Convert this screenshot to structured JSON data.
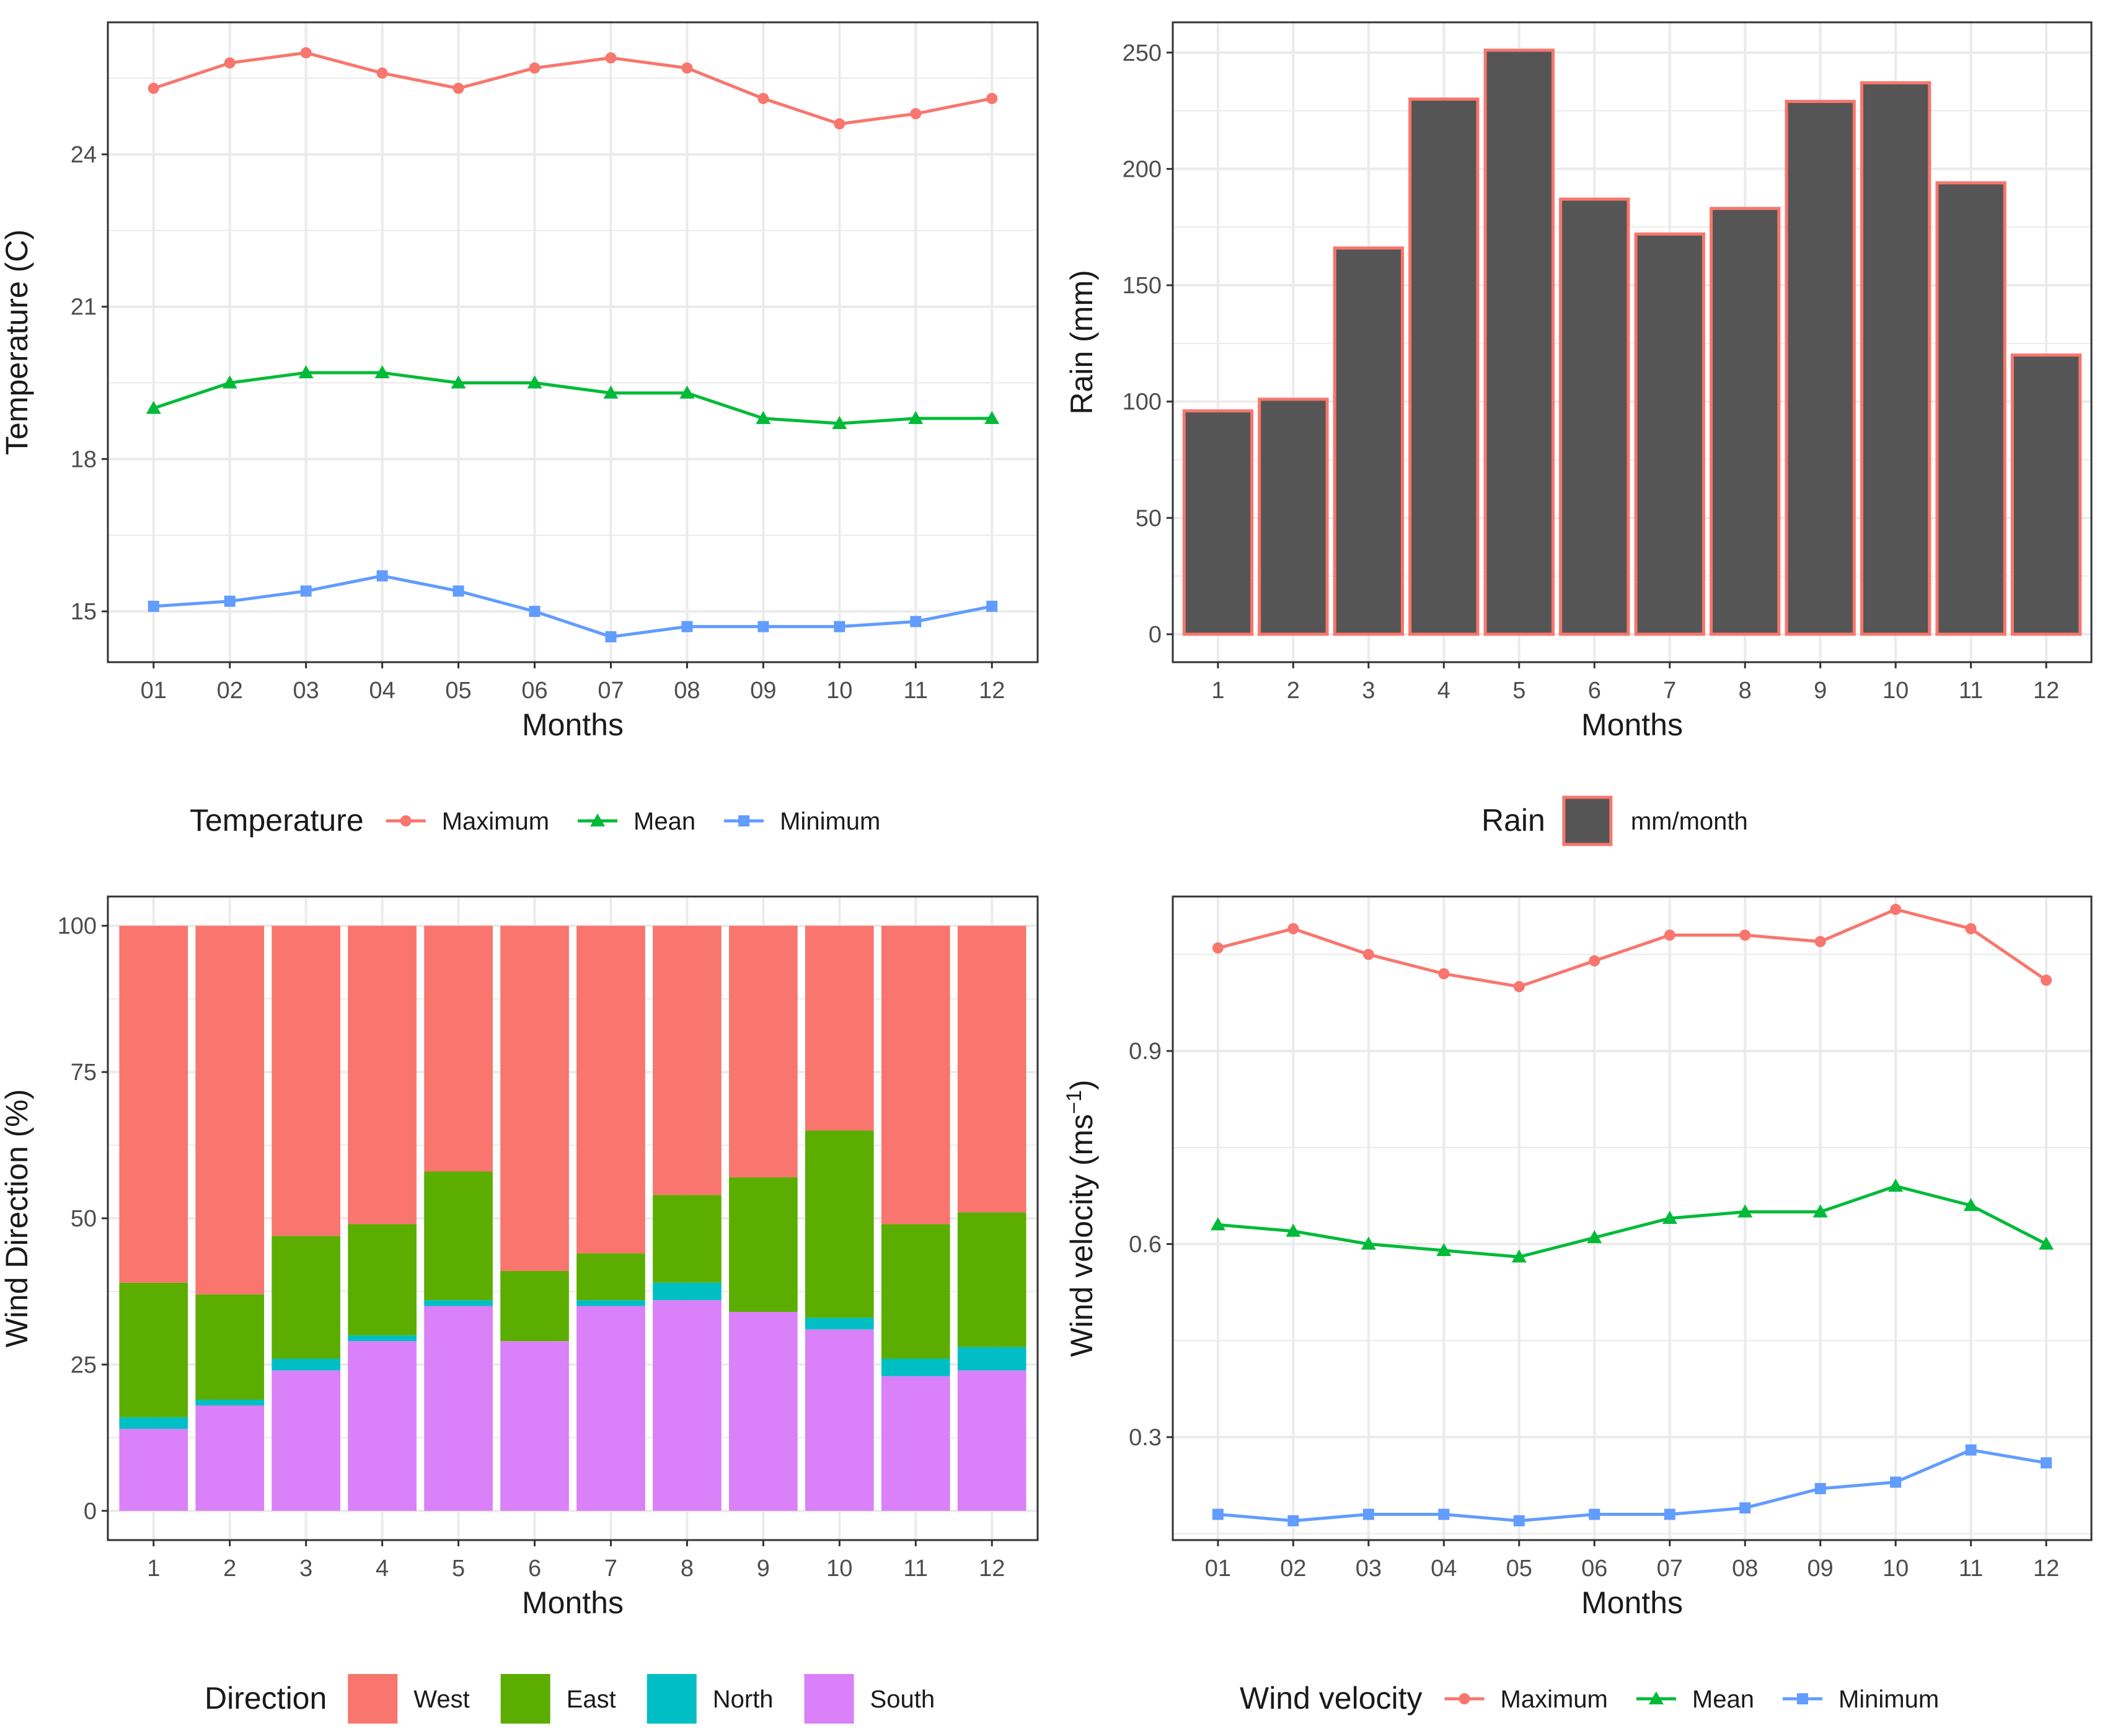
{
  "colors": {
    "maximum": "#F8766D",
    "mean": "#00BA38",
    "minimum": "#619CFF",
    "west": "#F8766D",
    "east": "#5BAE00",
    "north": "#00BFC4",
    "south": "#DA80F8",
    "rain_fill": "#555555",
    "rain_outline": "#F8766D",
    "grid": "#EBEBEB",
    "panel_border": "#333333"
  },
  "chart_data": [
    {
      "id": "temperature",
      "type": "line",
      "title": "",
      "xlabel": "Months",
      "ylabel": "Temperature (C)",
      "categories": [
        "01",
        "02",
        "03",
        "04",
        "05",
        "06",
        "07",
        "08",
        "09",
        "10",
        "11",
        "12"
      ],
      "ylim": [
        14.0,
        26.6
      ],
      "yticks": [
        15,
        18,
        21,
        24
      ],
      "ytick_labels": [
        "15",
        "18",
        "21",
        "24"
      ],
      "grid": true,
      "legend": {
        "title": "Temperature",
        "position": "bottom"
      },
      "series": [
        {
          "name": "Maximum",
          "color_key": "maximum",
          "marker": "circle",
          "values": [
            25.3,
            25.8,
            26.0,
            25.6,
            25.3,
            25.7,
            25.9,
            25.7,
            25.1,
            24.6,
            24.8,
            25.1
          ]
        },
        {
          "name": "Mean",
          "color_key": "mean",
          "marker": "triangle",
          "values": [
            19.0,
            19.5,
            19.7,
            19.7,
            19.5,
            19.5,
            19.3,
            19.3,
            18.8,
            18.7,
            18.8,
            18.8
          ]
        },
        {
          "name": "Minimum",
          "color_key": "minimum",
          "marker": "square",
          "values": [
            15.1,
            15.2,
            15.4,
            15.7,
            15.4,
            15.0,
            14.5,
            14.7,
            14.7,
            14.7,
            14.8,
            15.1
          ]
        }
      ]
    },
    {
      "id": "rain",
      "type": "bar",
      "title": "",
      "xlabel": "Months",
      "ylabel": "Rain (mm)",
      "categories": [
        "1",
        "2",
        "3",
        "4",
        "5",
        "6",
        "7",
        "8",
        "9",
        "10",
        "11",
        "12"
      ],
      "ylim": [
        -12,
        263
      ],
      "yticks": [
        0,
        50,
        100,
        150,
        200,
        250
      ],
      "ytick_labels": [
        "0",
        "50",
        "100",
        "150",
        "200",
        "250"
      ],
      "grid": true,
      "legend": {
        "title": "Rain",
        "label": "mm/month",
        "position": "bottom"
      },
      "values": [
        96,
        101,
        166,
        230,
        251,
        187,
        172,
        183,
        229,
        237,
        194,
        120
      ]
    },
    {
      "id": "wind_direction",
      "type": "bar",
      "stacked": true,
      "title": "",
      "xlabel": "Months",
      "ylabel": "Wind Direction (%)",
      "categories": [
        "1",
        "2",
        "3",
        "4",
        "5",
        "6",
        "7",
        "8",
        "9",
        "10",
        "11",
        "12"
      ],
      "ylim": [
        -5,
        105
      ],
      "yticks": [
        0,
        25,
        50,
        75,
        100
      ],
      "ytick_labels": [
        "0",
        "25",
        "50",
        "75",
        "100"
      ],
      "grid": true,
      "legend": {
        "title": "Direction",
        "position": "bottom"
      },
      "series": [
        {
          "name": "West",
          "color_key": "west",
          "values": [
            61,
            63,
            53,
            51,
            42,
            59,
            56,
            46,
            43,
            35,
            51,
            49
          ]
        },
        {
          "name": "East",
          "color_key": "east",
          "values": [
            23,
            18,
            21,
            19,
            22,
            12,
            8,
            15,
            23,
            32,
            23,
            23
          ]
        },
        {
          "name": "North",
          "color_key": "north",
          "values": [
            2,
            1,
            2,
            1,
            1,
            0,
            1,
            3,
            0,
            2,
            3,
            4
          ]
        },
        {
          "name": "South",
          "color_key": "south",
          "values": [
            14,
            18,
            24,
            29,
            35,
            29,
            35,
            36,
            34,
            31,
            23,
            24
          ]
        }
      ]
    },
    {
      "id": "wind_velocity",
      "type": "line",
      "title": "",
      "xlabel": "Months",
      "ylabel_prefix": "Wind velocity (ms",
      "ylabel_sup": "−1",
      "ylabel_suffix": ")",
      "categories": [
        "01",
        "02",
        "03",
        "04",
        "05",
        "06",
        "07",
        "08",
        "09",
        "10",
        "11",
        "12"
      ],
      "ylim": [
        0.14,
        1.14
      ],
      "yticks": [
        0.3,
        0.6,
        0.9
      ],
      "ytick_labels": [
        "0.3",
        "0.6",
        "0.9"
      ],
      "grid": true,
      "legend": {
        "title": "Wind velocity",
        "position": "bottom"
      },
      "series": [
        {
          "name": "Maximum",
          "color_key": "maximum",
          "marker": "circle",
          "values": [
            1.06,
            1.09,
            1.05,
            1.02,
            1.0,
            1.04,
            1.08,
            1.08,
            1.07,
            1.12,
            1.09,
            1.01
          ]
        },
        {
          "name": "Mean",
          "color_key": "mean",
          "marker": "triangle",
          "values": [
            0.63,
            0.62,
            0.6,
            0.59,
            0.58,
            0.61,
            0.64,
            0.65,
            0.65,
            0.69,
            0.66,
            0.6
          ]
        },
        {
          "name": "Minimum",
          "color_key": "minimum",
          "marker": "square",
          "values": [
            0.18,
            0.17,
            0.18,
            0.18,
            0.17,
            0.18,
            0.18,
            0.19,
            0.22,
            0.23,
            0.28,
            0.26
          ]
        }
      ]
    }
  ]
}
